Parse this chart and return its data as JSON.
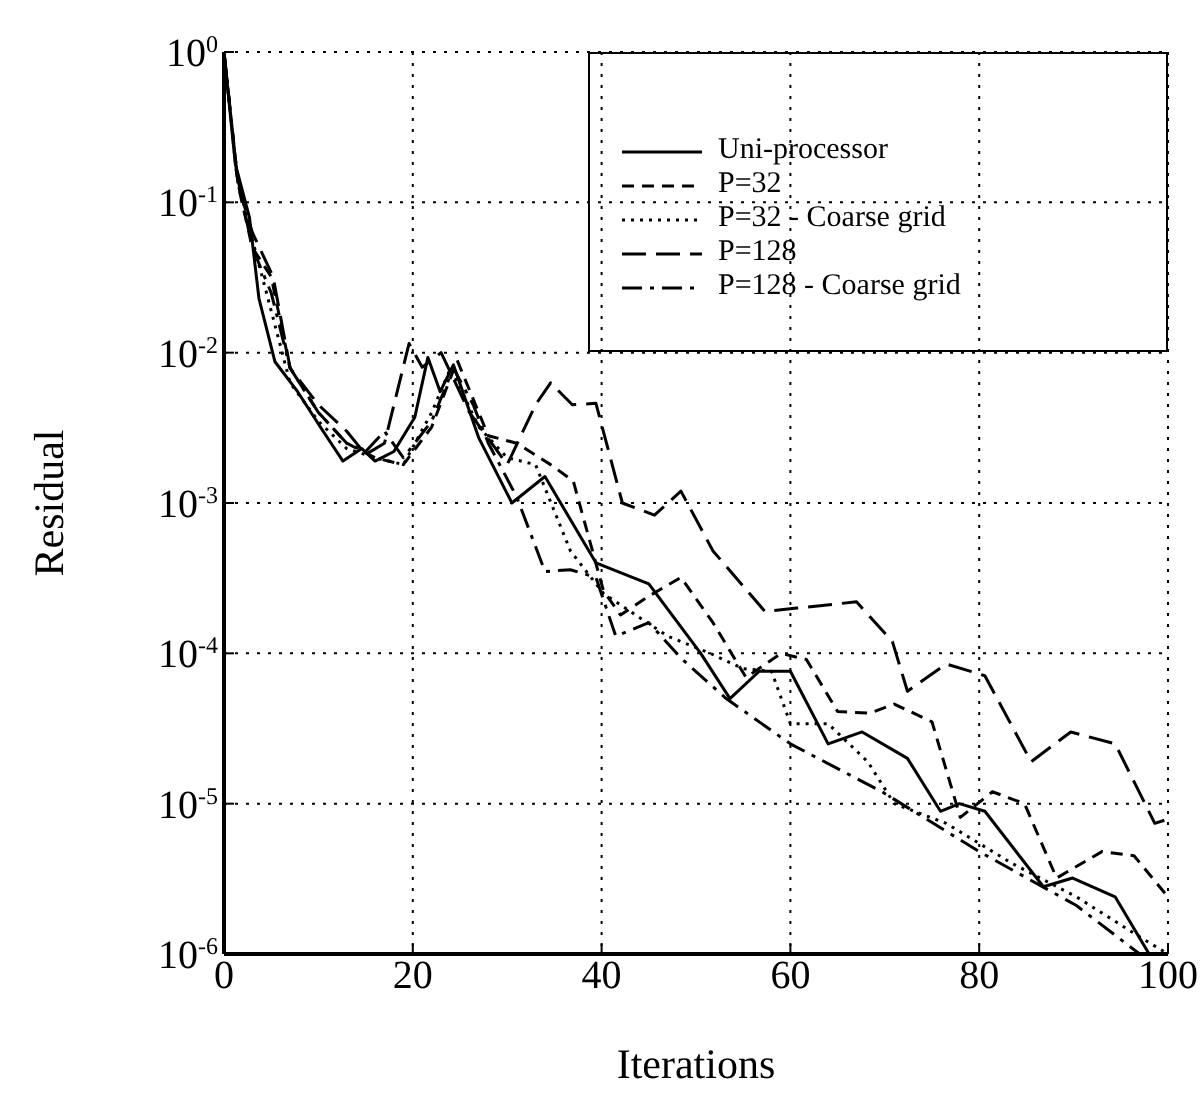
{
  "chart_data": {
    "type": "line",
    "xlabel": "Iterations",
    "ylabel": "Residual",
    "log": "y",
    "grid": true,
    "legend": "top right",
    "marker": "none",
    "xlim": [
      0,
      100
    ],
    "xticks": [
      0,
      20,
      40,
      60,
      80,
      100
    ],
    "ylim": [
      1e-06,
      1
    ],
    "yticks": [
      {
        "value": 1,
        "label": "10$^{0}$"
      },
      {
        "value": 0.1,
        "label": "10$^{-1}$"
      },
      {
        "value": 0.01,
        "label": "10$^{-2}$"
      },
      {
        "value": 0.001,
        "label": "10$^{-3}$"
      },
      {
        "value": 0.0001,
        "label": "10$^{-4}$"
      },
      {
        "value": 1e-05,
        "label": "10$^{-5}$"
      },
      {
        "value": 1e-06,
        "label": "10$^{-6}$"
      }
    ],
    "series": [
      {
        "name": "Uni-processor",
        "color": "#000000",
        "line_style": "solid",
        "x": [
          0,
          1.2,
          2.7,
          3.7,
          5.4,
          7.8,
          10.5,
          12.6,
          14.6,
          16,
          18,
          20.2,
          21.6,
          22.9,
          24.3,
          27,
          30.5,
          34,
          39.4,
          45,
          50.5,
          53.6,
          56.7,
          60,
          64,
          67.6,
          72.4,
          75.9,
          77.9,
          80.6,
          86.8,
          89.9,
          94.4,
          98
        ],
        "values": [
          1,
          0.18,
          0.079,
          0.023,
          0.0087,
          0.0055,
          0.003,
          0.0019,
          0.0023,
          0.0019,
          0.0022,
          0.0037,
          0.0093,
          0.0055,
          0.0083,
          0.0027,
          0.001,
          0.0015,
          0.0004,
          0.00029,
          0.0001,
          5e-05,
          7.6e-05,
          7.6e-05,
          2.5e-05,
          3e-05,
          2e-05,
          8.9e-06,
          1e-05,
          8.9e-06,
          2.8e-06,
          3.2e-06,
          2.4e-06,
          1e-06
        ]
      },
      {
        "name": "P=32",
        "color": "#000000",
        "line_style": "dashed",
        "x": [
          0,
          1.5,
          3,
          5,
          7,
          10,
          13,
          16,
          19,
          22,
          24.7,
          28,
          31,
          34.6,
          37,
          40.2,
          42,
          45,
          48.4,
          51.8,
          55.3,
          59,
          61.7,
          65,
          68.4,
          71,
          75,
          78,
          81.4,
          84.8,
          88.2,
          93,
          96.4,
          100
        ],
        "values": [
          1,
          0.13,
          0.05,
          0.032,
          0.0079,
          0.004,
          0.0025,
          0.002,
          0.0018,
          0.0032,
          0.0089,
          0.0028,
          0.0025,
          0.0018,
          0.0014,
          0.00026,
          0.00018,
          0.00024,
          0.00032,
          0.00016,
          6.9e-05,
          0.0001,
          9.1e-05,
          4.1e-05,
          4e-05,
          4.6e-05,
          3.5e-05,
          8.1e-06,
          1.2e-05,
          1e-05,
          3.2e-06,
          4.8e-06,
          4.5e-06,
          2.4e-06
        ]
      },
      {
        "name": "P=32 - Coarse grid",
        "color": "#000000",
        "line_style": "dotted",
        "x": [
          0,
          1.3,
          2.8,
          4.5,
          7,
          10,
          13,
          16,
          19,
          22,
          24,
          27,
          30,
          33,
          36.7,
          40.2,
          47,
          51.5,
          55,
          58,
          60,
          64,
          68.2,
          71,
          76.5,
          83.5,
          90.3,
          97,
          100
        ],
        "values": [
          1,
          0.16,
          0.063,
          0.025,
          0.0063,
          0.0035,
          0.0023,
          0.002,
          0.0018,
          0.004,
          0.0079,
          0.0032,
          0.002,
          0.0018,
          0.00048,
          0.00025,
          0.00013,
          0.0001,
          7.9e-05,
          7.6e-05,
          3.4e-05,
          3.4e-05,
          1.9e-05,
          1e-05,
          7.4e-06,
          4e-06,
          2.4e-06,
          1.3e-06,
          1e-06
        ]
      },
      {
        "name": "P=128",
        "color": "#000000",
        "line_style": "longdash",
        "x": [
          0,
          1.5,
          3,
          5.2,
          7,
          10,
          13,
          15,
          17,
          19.6,
          21,
          23,
          26,
          30,
          33,
          34.6,
          36.9,
          39.4,
          42.2,
          45.6,
          48.4,
          51.8,
          57.3,
          60.7,
          67,
          70.8,
          72.4,
          76.5,
          80.6,
          85.5,
          89.7,
          94.4,
          98.6,
          100
        ],
        "values": [
          1,
          0.13,
          0.063,
          0.032,
          0.0079,
          0.0045,
          0.003,
          0.0021,
          0.0025,
          0.0115,
          0.008,
          0.01,
          0.004,
          0.0018,
          0.0045,
          0.0063,
          0.0045,
          0.0046,
          0.001,
          0.00083,
          0.0012,
          0.00048,
          0.00019,
          0.0002,
          0.00022,
          0.00012,
          5.6e-05,
          8.5e-05,
          7.1e-05,
          1.9e-05,
          3e-05,
          2.5e-05,
          7.4e-06,
          7.9e-06
        ]
      },
      {
        "name": "P=128 - Coarse grid",
        "color": "#000000",
        "line_style": "dashdot",
        "x": [
          0,
          1.4,
          3,
          5,
          7,
          10,
          13,
          15,
          17,
          19,
          22,
          24.3,
          26.4,
          28,
          31,
          34,
          36.7,
          39.4,
          41.5,
          45,
          48.4,
          53.2,
          60,
          69.7,
          80,
          90.3,
          97
        ],
        "values": [
          1,
          0.15,
          0.05,
          0.025,
          0.0079,
          0.004,
          0.0025,
          0.0022,
          0.003,
          0.002,
          0.0035,
          0.0079,
          0.0045,
          0.0025,
          0.0011,
          0.00035,
          0.00036,
          0.00032,
          0.00013,
          0.00016,
          9.3e-05,
          5e-05,
          2.5e-05,
          1.2e-05,
          4.8e-06,
          2.1e-06,
          1e-06
        ]
      }
    ]
  }
}
